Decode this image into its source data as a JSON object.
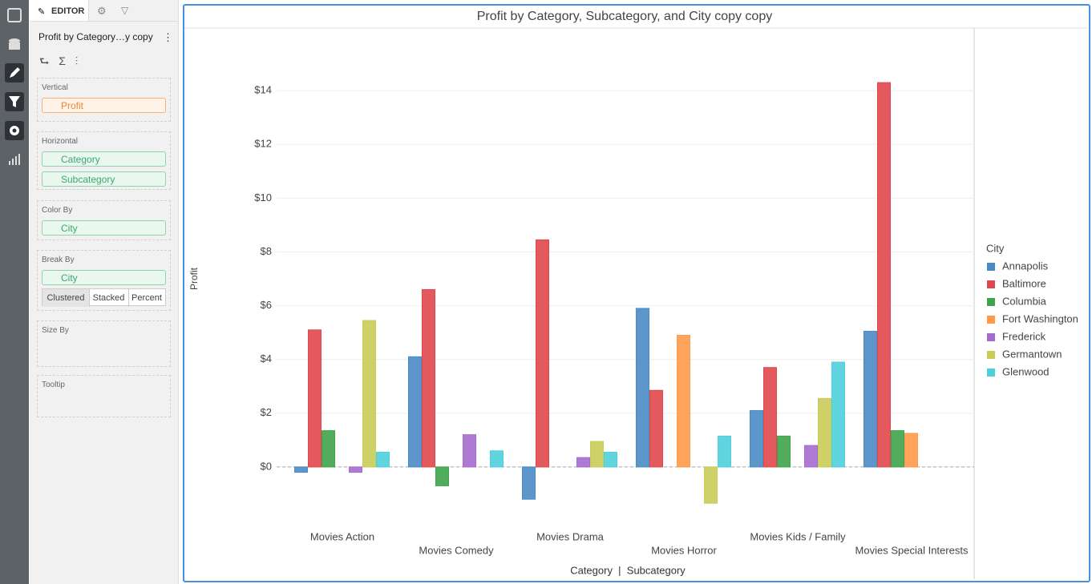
{
  "editor": {
    "tab": "EDITOR",
    "chart_name": "Profit by Category…y copy",
    "sections": [
      {
        "label": "Vertical",
        "fields": [
          "Profit"
        ]
      },
      {
        "label": "Horizontal",
        "fields": [
          "Category",
          "Subcategory"
        ]
      },
      {
        "label": "Color By",
        "fields": [
          "City"
        ]
      },
      {
        "label": "Break By",
        "fields": [
          "City"
        ],
        "options": [
          "Clustered",
          "Stacked",
          "Percent"
        ]
      },
      {
        "label": "Size By"
      },
      {
        "label": "Tooltip"
      }
    ]
  },
  "chart_data": {
    "type": "bar",
    "title": "Profit by Category, Subcategory, and City copy copy",
    "y_label": "Profit",
    "x_label": "Category  |  Subcategory",
    "legend_title": "City",
    "legend": "right",
    "grid": true,
    "categories": [
      "Movies Action",
      "Movies Comedy",
      "Movies Drama",
      "Movies Horror",
      "Movies Kids / Family",
      "Movies Special Interests"
    ],
    "ylim": [
      -2,
      16.3
    ],
    "yticks": [
      {
        "value": 0,
        "label": "$0"
      },
      {
        "value": 2,
        "label": "$2"
      },
      {
        "value": 4,
        "label": "$4"
      },
      {
        "value": 6,
        "label": "$6"
      },
      {
        "value": 8,
        "label": "$8"
      },
      {
        "value": 10,
        "label": "$10"
      },
      {
        "value": 12,
        "label": "$12"
      },
      {
        "value": 14,
        "label": "$14"
      }
    ],
    "series": [
      {
        "name": "Annapolis",
        "color": "#4a8bc4",
        "values": [
          -0.2,
          4.1,
          -1.2,
          5.9,
          2.1,
          5.05
        ]
      },
      {
        "name": "Baltimore",
        "color": "#e0474c",
        "values": [
          5.1,
          6.6,
          8.45,
          2.85,
          3.7,
          14.3
        ]
      },
      {
        "name": "Columbia",
        "color": "#3ea34a",
        "values": [
          1.35,
          -0.7,
          null,
          null,
          1.15,
          1.35
        ]
      },
      {
        "name": "Fort Washington",
        "color": "#ff9a4a",
        "values": [
          null,
          null,
          null,
          4.9,
          null,
          1.25
        ]
      },
      {
        "name": "Frederick",
        "color": "#a66bcf",
        "values": [
          -0.2,
          1.2,
          0.35,
          null,
          0.8,
          null
        ]
      },
      {
        "name": "Germantown",
        "color": "#c9cc57",
        "values": [
          5.45,
          null,
          0.95,
          -1.35,
          2.55,
          null
        ]
      },
      {
        "name": "Glenwood",
        "color": "#4fcfdc",
        "values": [
          0.55,
          0.6,
          0.55,
          1.15,
          3.9,
          null
        ]
      }
    ]
  }
}
